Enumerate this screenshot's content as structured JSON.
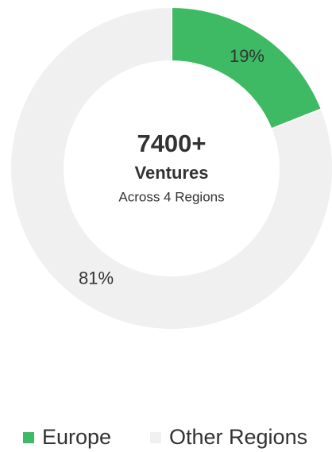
{
  "chart_data": {
    "type": "donut",
    "categories": [
      "Europe",
      "Other Regions"
    ],
    "values": [
      19,
      81
    ],
    "value_labels": [
      "19%",
      "81%"
    ],
    "colors": [
      "#3dba63",
      "#f0f0f0"
    ],
    "center_text": [
      "7400+",
      "Ventures",
      "Across 4 Regions"
    ],
    "legend": "bottom"
  }
}
